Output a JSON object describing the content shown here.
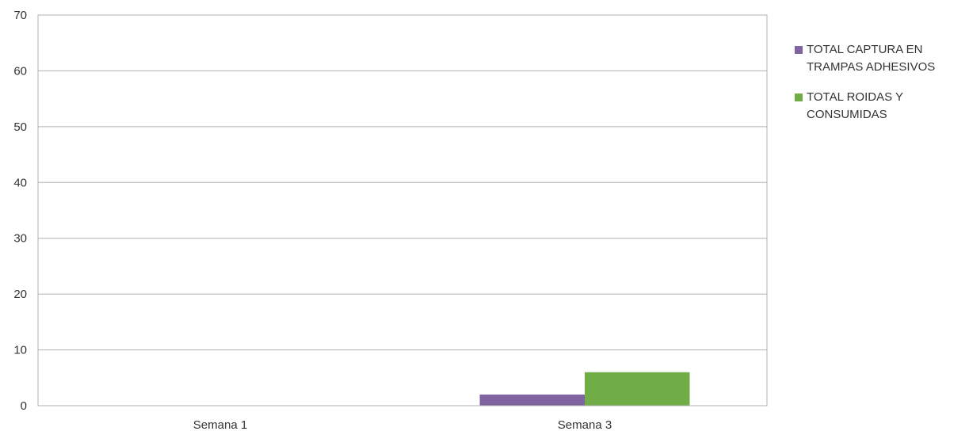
{
  "chart_data": {
    "type": "bar",
    "categories": [
      "Semana 1",
      "Semana 3"
    ],
    "series": [
      {
        "name": "TOTAL CAPTURA EN TRAMPAS  ADHESIVOS",
        "values": [
          0,
          2
        ],
        "color": "#8064A2"
      },
      {
        "name": "TOTAL ROIDAS Y CONSUMIDAS",
        "values": [
          0,
          6
        ],
        "color": "#70AD47"
      }
    ],
    "ylim": [
      0,
      70
    ],
    "yticks": [
      0,
      10,
      20,
      30,
      40,
      50,
      60,
      70
    ],
    "grid": true,
    "legend": "right",
    "title": "",
    "xlabel": "",
    "ylabel": ""
  }
}
